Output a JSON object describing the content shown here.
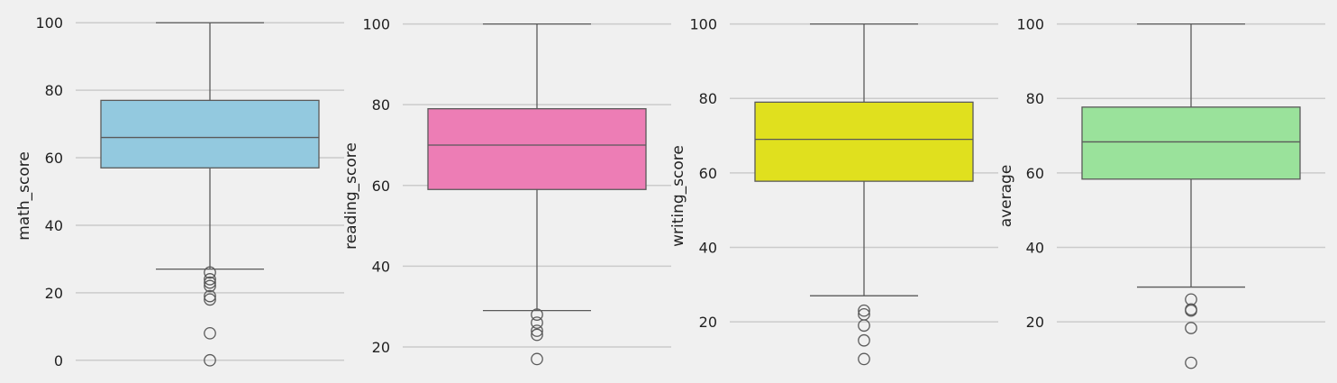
{
  "chart_data": [
    {
      "type": "box",
      "ylabel": "math_score",
      "color": "#93c9df",
      "ylim": [
        -4.6,
        104.6
      ],
      "yticks": [
        0,
        20,
        40,
        60,
        80,
        100
      ],
      "stats": {
        "whisker_low": 27,
        "q1": 57,
        "median": 66,
        "q3": 77,
        "whisker_high": 100
      },
      "outliers": [
        26,
        24,
        23,
        22,
        19,
        18,
        8,
        0
      ],
      "grid": true
    },
    {
      "type": "box",
      "ylabel": "reading_score",
      "color": "#ed7db5",
      "ylim": [
        12.85,
        104.15
      ],
      "yticks": [
        20,
        40,
        60,
        80,
        100
      ],
      "stats": {
        "whisker_low": 29,
        "q1": 59,
        "median": 70,
        "q3": 79,
        "whisker_high": 100
      },
      "outliers": [
        28,
        26,
        24,
        23,
        17
      ],
      "grid": true
    },
    {
      "type": "box",
      "ylabel": "writing_score",
      "color": "#e0e01e",
      "ylim": [
        5.5,
        104.5
      ],
      "yticks": [
        20,
        40,
        60,
        80,
        100
      ],
      "stats": {
        "whisker_low": 27,
        "q1": 57.75,
        "median": 69,
        "q3": 79,
        "whisker_high": 100
      },
      "outliers": [
        23,
        22,
        19,
        15,
        10
      ],
      "grid": true
    },
    {
      "type": "box",
      "ylabel": "average",
      "color": "#9ae29b",
      "ylim": [
        5.5,
        104.5
      ],
      "yticks": [
        20,
        40,
        60,
        80,
        100
      ],
      "stats": {
        "whisker_low": 29.33,
        "q1": 58.33,
        "median": 68.33,
        "q3": 77.67,
        "whisker_high": 100
      },
      "outliers": [
        26,
        23.33,
        23,
        18.33,
        9
      ],
      "grid": true
    }
  ]
}
